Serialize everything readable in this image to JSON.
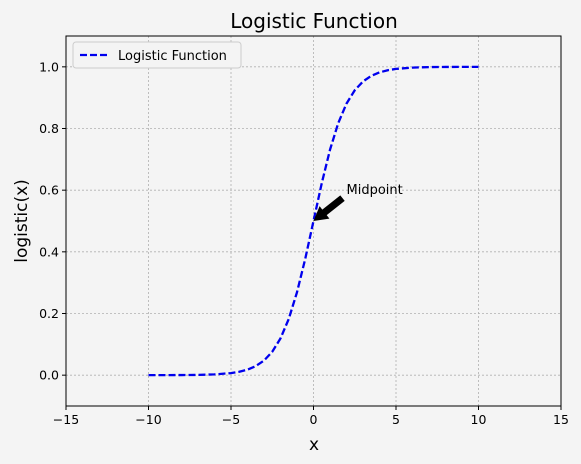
{
  "chart_data": {
    "type": "line",
    "title": "Logistic Function",
    "xlabel": "x",
    "ylabel": "logistic(x)",
    "xlim": [
      -15,
      15
    ],
    "ylim": [
      -0.1,
      1.1
    ],
    "xticks": [
      -15,
      -10,
      -5,
      0,
      5,
      10,
      15
    ],
    "yticks": [
      0.0,
      0.2,
      0.4,
      0.6,
      0.8,
      1.0
    ],
    "xtick_labels": [
      "−15",
      "−10",
      "−5",
      "0",
      "5",
      "10",
      "15"
    ],
    "ytick_labels": [
      "0.0",
      "0.2",
      "0.4",
      "0.6",
      "0.8",
      "1.0"
    ],
    "grid": true,
    "legend": {
      "position": "top-left",
      "entries": [
        "Logistic Function"
      ]
    },
    "series": [
      {
        "name": "Logistic Function",
        "color": "#0000ee",
        "style": "dashed",
        "x": [
          -10,
          -9,
          -8,
          -7,
          -6,
          -5,
          -4.5,
          -4,
          -3.5,
          -3,
          -2.5,
          -2,
          -1.5,
          -1,
          -0.5,
          0,
          0.5,
          1,
          1.5,
          2,
          2.5,
          3,
          3.5,
          4,
          4.5,
          5,
          6,
          7,
          8,
          9,
          10
        ],
        "y": [
          4.54e-05,
          0.000123,
          0.000335,
          0.000911,
          0.00247,
          0.00669,
          0.011,
          0.018,
          0.0293,
          0.0474,
          0.0759,
          0.1192,
          0.1824,
          0.2689,
          0.3775,
          0.5,
          0.6225,
          0.7311,
          0.8176,
          0.8808,
          0.9241,
          0.9526,
          0.9707,
          0.982,
          0.989,
          0.9933,
          0.9975,
          0.9991,
          0.99966,
          0.99988,
          0.99995
        ]
      }
    ],
    "annotations": [
      {
        "text": "Midpoint",
        "point": [
          0,
          0.5
        ],
        "text_at": [
          2,
          0.6
        ]
      }
    ]
  }
}
